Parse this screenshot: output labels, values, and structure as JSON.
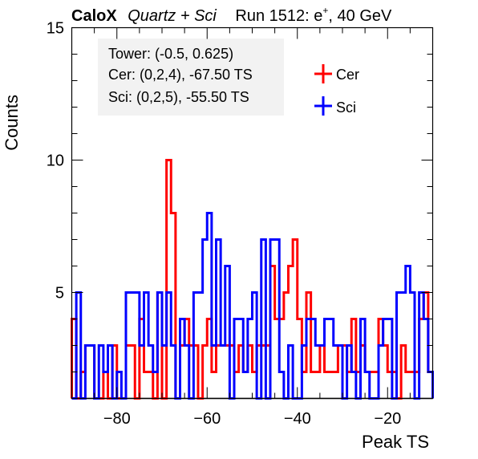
{
  "header": {
    "experiment": "CaloX",
    "detector": "Quartz + Sci",
    "run": "Run 1512: e",
    "run_superscript": "+",
    "energy": ", 40 GeV"
  },
  "info_box": {
    "tower": "Tower: (-0.5, 0.625)",
    "cer": "Cer: (0,2,4), -67.50 TS",
    "sci": "Sci: (0,2,5), -55.50 TS"
  },
  "chart_data": {
    "type": "histogram",
    "xlabel": "Peak TS",
    "ylabel": "Counts",
    "xlim": [
      -90,
      -10
    ],
    "ylim": [
      1,
      15
    ],
    "xticks": [
      -80,
      -60,
      -40,
      -20
    ],
    "xtick_labels": [
      "−80",
      "−60",
      "−40",
      "−20"
    ],
    "yticks": [
      5,
      10,
      15
    ],
    "ytick_labels": [
      "5",
      "10",
      "15"
    ],
    "bin_width": 1,
    "legend_position": "top-right",
    "x": [
      -90,
      -89,
      -88,
      -87,
      -86,
      -85,
      -84,
      -83,
      -82,
      -81,
      -80,
      -79,
      -78,
      -77,
      -76,
      -75,
      -74,
      -73,
      -72,
      -71,
      -70,
      -69,
      -68,
      -67,
      -66,
      -65,
      -64,
      -63,
      -62,
      -61,
      -60,
      -59,
      -58,
      -57,
      -56,
      -55,
      -54,
      -53,
      -52,
      -51,
      -50,
      -49,
      -48,
      -47,
      -46,
      -45,
      -44,
      -43,
      -42,
      -41,
      -40,
      -39,
      -38,
      -37,
      -36,
      -35,
      -34,
      -33,
      -32,
      -31,
      -30,
      -29,
      -28,
      -27,
      -26,
      -25,
      -24,
      -23,
      -22,
      -21,
      -20,
      -19,
      -18,
      -17,
      -16,
      -15,
      -14,
      -13,
      -12,
      -11
    ],
    "series": [
      {
        "name": "Cer",
        "color": "#ff0000",
        "values": [
          4,
          1,
          2,
          3,
          3,
          1,
          1,
          2,
          1,
          3,
          1,
          1,
          3,
          3,
          1,
          4,
          2,
          2,
          1,
          5,
          1,
          10,
          8,
          1,
          3,
          4,
          3,
          3,
          1,
          3,
          4,
          2,
          3,
          3,
          3,
          3,
          2,
          3,
          2,
          3,
          2,
          3,
          3,
          3,
          6,
          4,
          4,
          5,
          6,
          7,
          4,
          2,
          5,
          2,
          2,
          3,
          2,
          2,
          2,
          3,
          3,
          2,
          4,
          2,
          3,
          2,
          2,
          2,
          4,
          3,
          2,
          2,
          1,
          3,
          2,
          2,
          2,
          4,
          5,
          2
        ]
      },
      {
        "name": "Sci",
        "color": "#0000ff",
        "values": [
          1,
          5,
          1,
          3,
          3,
          1,
          3,
          2,
          3,
          1,
          2,
          1,
          5,
          5,
          5,
          3,
          5,
          3,
          2,
          5,
          3,
          5,
          3,
          1,
          4,
          3,
          1,
          5,
          5,
          7,
          8,
          3,
          7,
          3,
          6,
          1,
          4,
          4,
          2,
          4,
          5,
          1,
          7,
          1,
          7,
          7,
          2,
          1,
          3,
          1,
          1,
          3,
          4,
          4,
          3,
          3,
          4,
          4,
          3,
          3,
          1,
          3,
          2,
          1,
          4,
          2,
          1,
          1,
          3,
          4,
          4,
          1,
          5,
          5,
          6,
          5,
          1,
          5,
          4,
          2
        ]
      }
    ]
  }
}
